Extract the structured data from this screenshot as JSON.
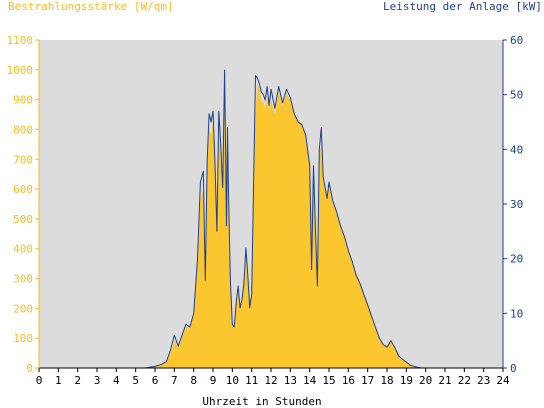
{
  "chart_data": {
    "type": "area",
    "left_axis_title": "Bestrahlungsstärke [W/qm]",
    "right_axis_title": "Leistung der Anlage [kW]",
    "xlabel": "Uhrzeit in Stunden",
    "x_ticks": [
      "0",
      "1",
      "2",
      "3",
      "4",
      "5",
      "6",
      "7",
      "8",
      "9",
      "10",
      "11",
      "12",
      "13",
      "14",
      "15",
      "16",
      "17",
      "18",
      "19",
      "20",
      "21",
      "22",
      "23",
      "24"
    ],
    "left_ticks": [
      "0",
      "100",
      "200",
      "300",
      "400",
      "500",
      "600",
      "700",
      "800",
      "900",
      "1000",
      "1100"
    ],
    "right_ticks": [
      "0",
      "10",
      "20",
      "30",
      "40",
      "50",
      "60"
    ],
    "xlim": [
      0,
      24
    ],
    "ylim_left": [
      0,
      1100
    ],
    "ylim_right": [
      0,
      60
    ],
    "grid": false,
    "colors": {
      "plot_background": "#dcdcdc",
      "irradiance_fill": "#fcc62f",
      "power_line": "#1d3f8c",
      "left_axis": "#f5be1f",
      "right_axis": "#1d3f8c"
    },
    "series": [
      {
        "name": "Bestrahlungsstärke [W/qm]",
        "axis": "left",
        "style": "filled-area",
        "x": [
          0,
          5.5,
          6.0,
          6.3,
          6.6,
          6.8,
          7.0,
          7.2,
          7.4,
          7.6,
          7.8,
          8.0,
          8.2,
          8.35,
          8.5,
          8.6,
          8.7,
          8.8,
          8.9,
          9.0,
          9.1,
          9.2,
          9.3,
          9.4,
          9.5,
          9.6,
          9.7,
          9.75,
          9.8,
          9.9,
          10.0,
          10.1,
          10.2,
          10.3,
          10.4,
          10.5,
          10.6,
          10.7,
          10.8,
          10.9,
          11.0,
          11.1,
          11.2,
          11.3,
          11.4,
          11.5,
          11.6,
          11.7,
          11.8,
          11.9,
          12.0,
          12.2,
          12.4,
          12.6,
          12.8,
          13.0,
          13.2,
          13.4,
          13.6,
          13.8,
          14.0,
          14.1,
          14.2,
          14.3,
          14.4,
          14.5,
          14.6,
          14.7,
          14.8,
          14.9,
          15.0,
          15.2,
          15.4,
          15.6,
          15.8,
          16.0,
          16.2,
          16.4,
          16.6,
          16.8,
          17.0,
          17.2,
          17.4,
          17.6,
          17.8,
          18.0,
          18.2,
          18.4,
          18.6,
          18.8,
          19.0,
          19.2,
          19.4,
          19.6,
          19.8,
          20.0,
          24
        ],
        "values": [
          0,
          0,
          5,
          10,
          20,
          50,
          90,
          70,
          100,
          140,
          130,
          180,
          350,
          560,
          600,
          300,
          650,
          800,
          780,
          820,
          700,
          500,
          800,
          720,
          600,
          900,
          450,
          700,
          550,
          300,
          150,
          140,
          220,
          280,
          200,
          230,
          280,
          380,
          300,
          200,
          250,
          600,
          850,
          950,
          940,
          900,
          890,
          870,
          910,
          860,
          900,
          850,
          930,
          880,
          920,
          900,
          850,
          830,
          820,
          780,
          700,
          520,
          680,
          500,
          300,
          700,
          750,
          650,
          600,
          580,
          620,
          550,
          520,
          480,
          440,
          400,
          360,
          320,
          290,
          250,
          220,
          180,
          140,
          100,
          80,
          70,
          90,
          70,
          40,
          30,
          20,
          10,
          5,
          2,
          0,
          0,
          0
        ]
      },
      {
        "name": "Leistung der Anlage [kW]",
        "axis": "right",
        "style": "line",
        "x": [
          0,
          5.5,
          6.0,
          6.3,
          6.6,
          6.8,
          7.0,
          7.2,
          7.4,
          7.6,
          7.8,
          8.0,
          8.2,
          8.35,
          8.5,
          8.6,
          8.7,
          8.8,
          8.9,
          9.0,
          9.1,
          9.2,
          9.3,
          9.4,
          9.5,
          9.6,
          9.7,
          9.75,
          9.8,
          9.9,
          10.0,
          10.1,
          10.2,
          10.3,
          10.4,
          10.5,
          10.6,
          10.7,
          10.8,
          10.9,
          11.0,
          11.1,
          11.2,
          11.3,
          11.4,
          11.5,
          11.6,
          11.7,
          11.8,
          11.9,
          12.0,
          12.2,
          12.4,
          12.6,
          12.8,
          13.0,
          13.2,
          13.4,
          13.6,
          13.8,
          14.0,
          14.1,
          14.2,
          14.3,
          14.4,
          14.5,
          14.6,
          14.7,
          14.8,
          14.9,
          15.0,
          15.2,
          15.4,
          15.6,
          15.8,
          16.0,
          16.2,
          16.4,
          16.6,
          16.8,
          17.0,
          17.2,
          17.4,
          17.6,
          17.8,
          18.0,
          18.2,
          18.4,
          18.6,
          18.8,
          19.0,
          19.2,
          19.4,
          19.6,
          19.8,
          20.0,
          24
        ],
        "values": [
          0,
          0,
          0.3,
          0.6,
          1.2,
          3.3,
          6.0,
          4.0,
          6.0,
          8.0,
          7.5,
          10.0,
          20.0,
          34.0,
          36.0,
          16.0,
          38.0,
          46.5,
          45.0,
          47.0,
          38.0,
          25.0,
          47.0,
          41.0,
          33.0,
          54.5,
          26.0,
          44.0,
          32.0,
          16.0,
          8.0,
          7.5,
          12.0,
          15.0,
          11.0,
          12.5,
          15.5,
          22.0,
          17.0,
          11.0,
          13.5,
          34.0,
          53.5,
          53.0,
          52.0,
          50.5,
          50.0,
          49.0,
          51.5,
          48.0,
          51.0,
          47.5,
          51.5,
          48.5,
          51.0,
          49.5,
          46.5,
          45.0,
          44.5,
          42.5,
          37.0,
          18.0,
          37.0,
          25.0,
          15.0,
          40.0,
          44.0,
          35.0,
          33.0,
          31.0,
          34.0,
          30.5,
          28.5,
          26.0,
          24.0,
          21.5,
          19.5,
          17.0,
          15.5,
          13.5,
          11.5,
          9.5,
          7.5,
          5.5,
          4.3,
          3.8,
          5.0,
          3.8,
          2.2,
          1.6,
          1.1,
          0.5,
          0.3,
          0.1,
          0,
          0,
          0
        ]
      }
    ]
  }
}
